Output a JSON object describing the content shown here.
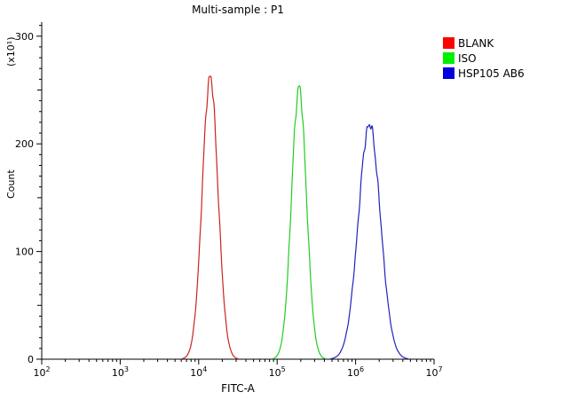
{
  "title": "Multi-sample : P1",
  "legend": {
    "items": [
      {
        "label": "BLANK",
        "color": "#ff0000"
      },
      {
        "label": "ISO",
        "color": "#00ee00"
      },
      {
        "label": "HSP105 AB6",
        "color": "#0000dd"
      }
    ]
  },
  "chart_data": {
    "type": "line",
    "subtype": "flow-cytometry-histogram",
    "title": "Multi-sample : P1",
    "xlabel": "FITC-A",
    "ylabel": "Count",
    "y_unit_label": "(x10¹)",
    "x_scale": "log10",
    "xlim": [
      100,
      10000000
    ],
    "ylim": [
      0,
      313
    ],
    "y_ticks": [
      0,
      100,
      200,
      300
    ],
    "y_minor_tick_step": 10,
    "x_ticks": [
      "10^2",
      "10^3",
      "10^4",
      "10^5",
      "10^6",
      "10^7"
    ],
    "grid": false,
    "legend_position": "top-right",
    "series": [
      {
        "name": "BLANK",
        "color": "#cc2222",
        "peak_x": 14000,
        "peak_y": 262,
        "sigma_log10": 0.1
      },
      {
        "name": "ISO",
        "color": "#22cc22",
        "peak_x": 190000,
        "peak_y": 252,
        "sigma_log10": 0.095
      },
      {
        "name": "HSP105 AB6",
        "color": "#2222bb",
        "peak_x": 1500000,
        "peak_y": 218,
        "sigma_log10": 0.14
      }
    ]
  }
}
